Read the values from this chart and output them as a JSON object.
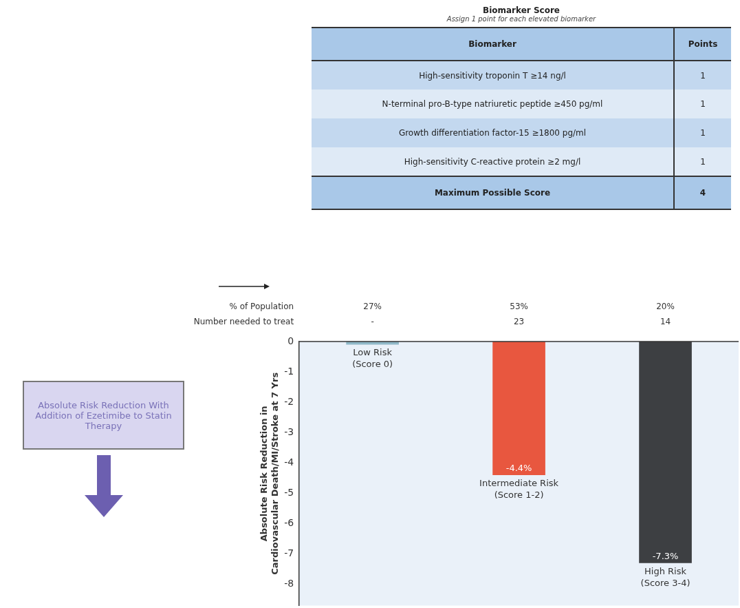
{
  "chart_data": [
    {
      "type": "other",
      "title": "Biomarker Score",
      "subtitle": "Assign 1 point for each elevated biomarker",
      "annotations": [
        "Biomarker",
        "Points",
        "High-sensitivity troponin T ≥14 ng/l",
        "1",
        "N-terminal pro-B-type natriuretic peptide ≥450 pg/ml",
        "1",
        "Growth differentiation factor-15 ≥1800 pg/ml",
        "1",
        "High-sensitivity C-reactive protein ≥2 mg/l",
        "1",
        "Maximum Possible Score",
        "4"
      ]
    },
    {
      "type": "other",
      "annotations": [
        "Absolute Risk Reduction With Addition of Ezetimibe to Statin Therapy"
      ]
    },
    {
      "type": "bar",
      "ylabel": "Absolute Risk Reduction in\nCardiovascular Death/MI/Stroke at 7 Yrs",
      "categories": [
        "Low Risk\n(Score 0)",
        "Intermediate Risk\n(Score 1-2)",
        "High Risk\n(Score 3-4)"
      ],
      "values": [
        -0.1,
        -4.4,
        -7.3
      ],
      "colors": [
        "#8fb8c8",
        "#e8573f",
        "#3d3f42"
      ],
      "value_labels": [
        null,
        "-4.4%",
        "-7.3%"
      ],
      "ylim": [
        -8.7,
        0
      ],
      "yticks": [
        0,
        -1,
        -2,
        -3,
        -4,
        -5,
        -6,
        -7,
        -8
      ],
      "grid": false,
      "legend": false,
      "annotations": [
        "% of Population",
        "Number needed to treat",
        "27%",
        "-",
        "53%",
        "23",
        "20%",
        "14"
      ]
    }
  ]
}
